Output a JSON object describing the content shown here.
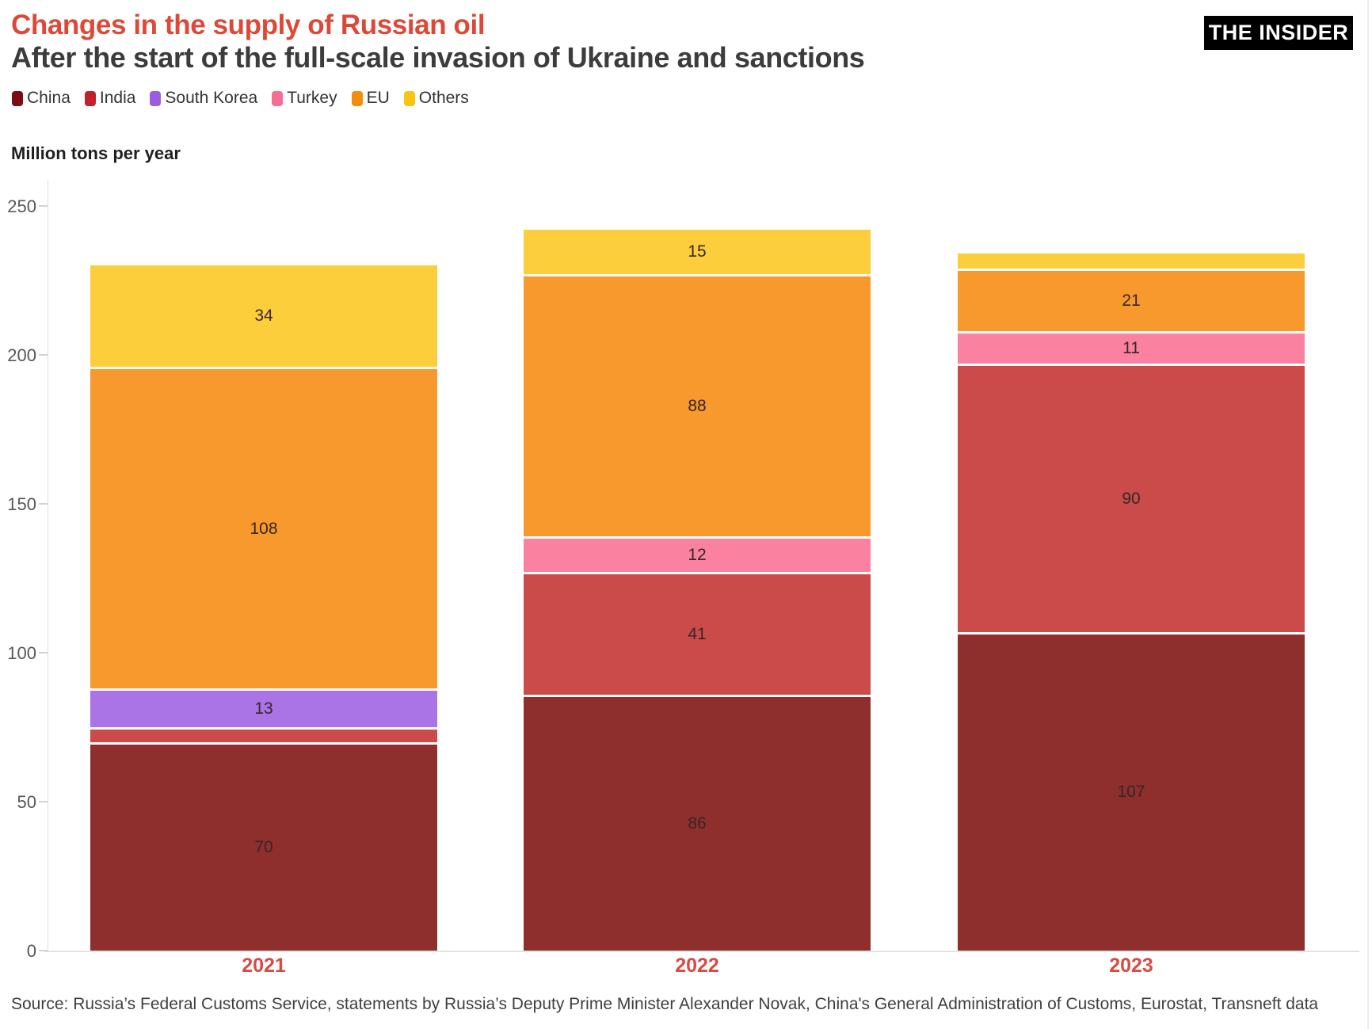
{
  "header": {
    "title": "Changes in the supply of Russian oil",
    "subtitle": "After the start of the full-scale invasion of Ukraine and sanctions",
    "logo": "THE INSIDER"
  },
  "colors": {
    "title": "#dd4937",
    "subtitle": "#3c3c3c",
    "year_labels": "#d74b42",
    "tick_labels": "#575757",
    "value_labels": "#362626",
    "axis_line": "#dcdcdc",
    "logo_bg": "#000000",
    "logo_text": "#ffffff"
  },
  "chart_data": {
    "type": "bar",
    "stacked": true,
    "title": "Changes in the supply of Russian oil",
    "subtitle": "After the start of the full-scale invasion of Ukraine and sanctions",
    "unit_label": "Million tons per year",
    "categories": [
      "2021",
      "2022",
      "2023"
    ],
    "series": [
      {
        "name": "China",
        "legend_color": "#7c0c11",
        "bar_color": "#8e2f2e",
        "values": [
          70,
          86,
          107
        ],
        "labels": [
          "70",
          "86",
          "107"
        ]
      },
      {
        "name": "India",
        "legend_color": "#c0212b",
        "bar_color": "#cb4b4a",
        "values": [
          5,
          41,
          90
        ],
        "labels": [
          "",
          "41",
          "90"
        ]
      },
      {
        "name": "South Korea",
        "legend_color": "#9d5be0",
        "bar_color": "#ab74e6",
        "values": [
          13,
          0,
          0
        ],
        "labels": [
          "13",
          "",
          ""
        ]
      },
      {
        "name": "Turkey",
        "legend_color": "#f76e93",
        "bar_color": "#fb81a0",
        "values": [
          0,
          12,
          11
        ],
        "labels": [
          "",
          "12",
          "11"
        ]
      },
      {
        "name": "EU",
        "legend_color": "#f28d0e",
        "bar_color": "#f8992e",
        "values": [
          108,
          88,
          21
        ],
        "labels": [
          "108",
          "88",
          "21"
        ]
      },
      {
        "name": "Others",
        "legend_color": "#f9c513",
        "bar_color": "#fdce3b",
        "values": [
          34,
          15,
          5
        ],
        "labels": [
          "34",
          "15",
          ""
        ]
      }
    ],
    "totals": [
      230,
      242,
      234
    ],
    "ylim": [
      0,
      250
    ],
    "yticks": [
      0,
      50,
      100,
      150,
      200,
      250
    ],
    "grid": false,
    "legend_position": "top-left"
  },
  "source": "Source: Russia’s Federal Customs Service, statements by Russia’s Deputy Prime Minister Alexander Novak, China's General Administration of Customs, Eurostat, Transneft data"
}
